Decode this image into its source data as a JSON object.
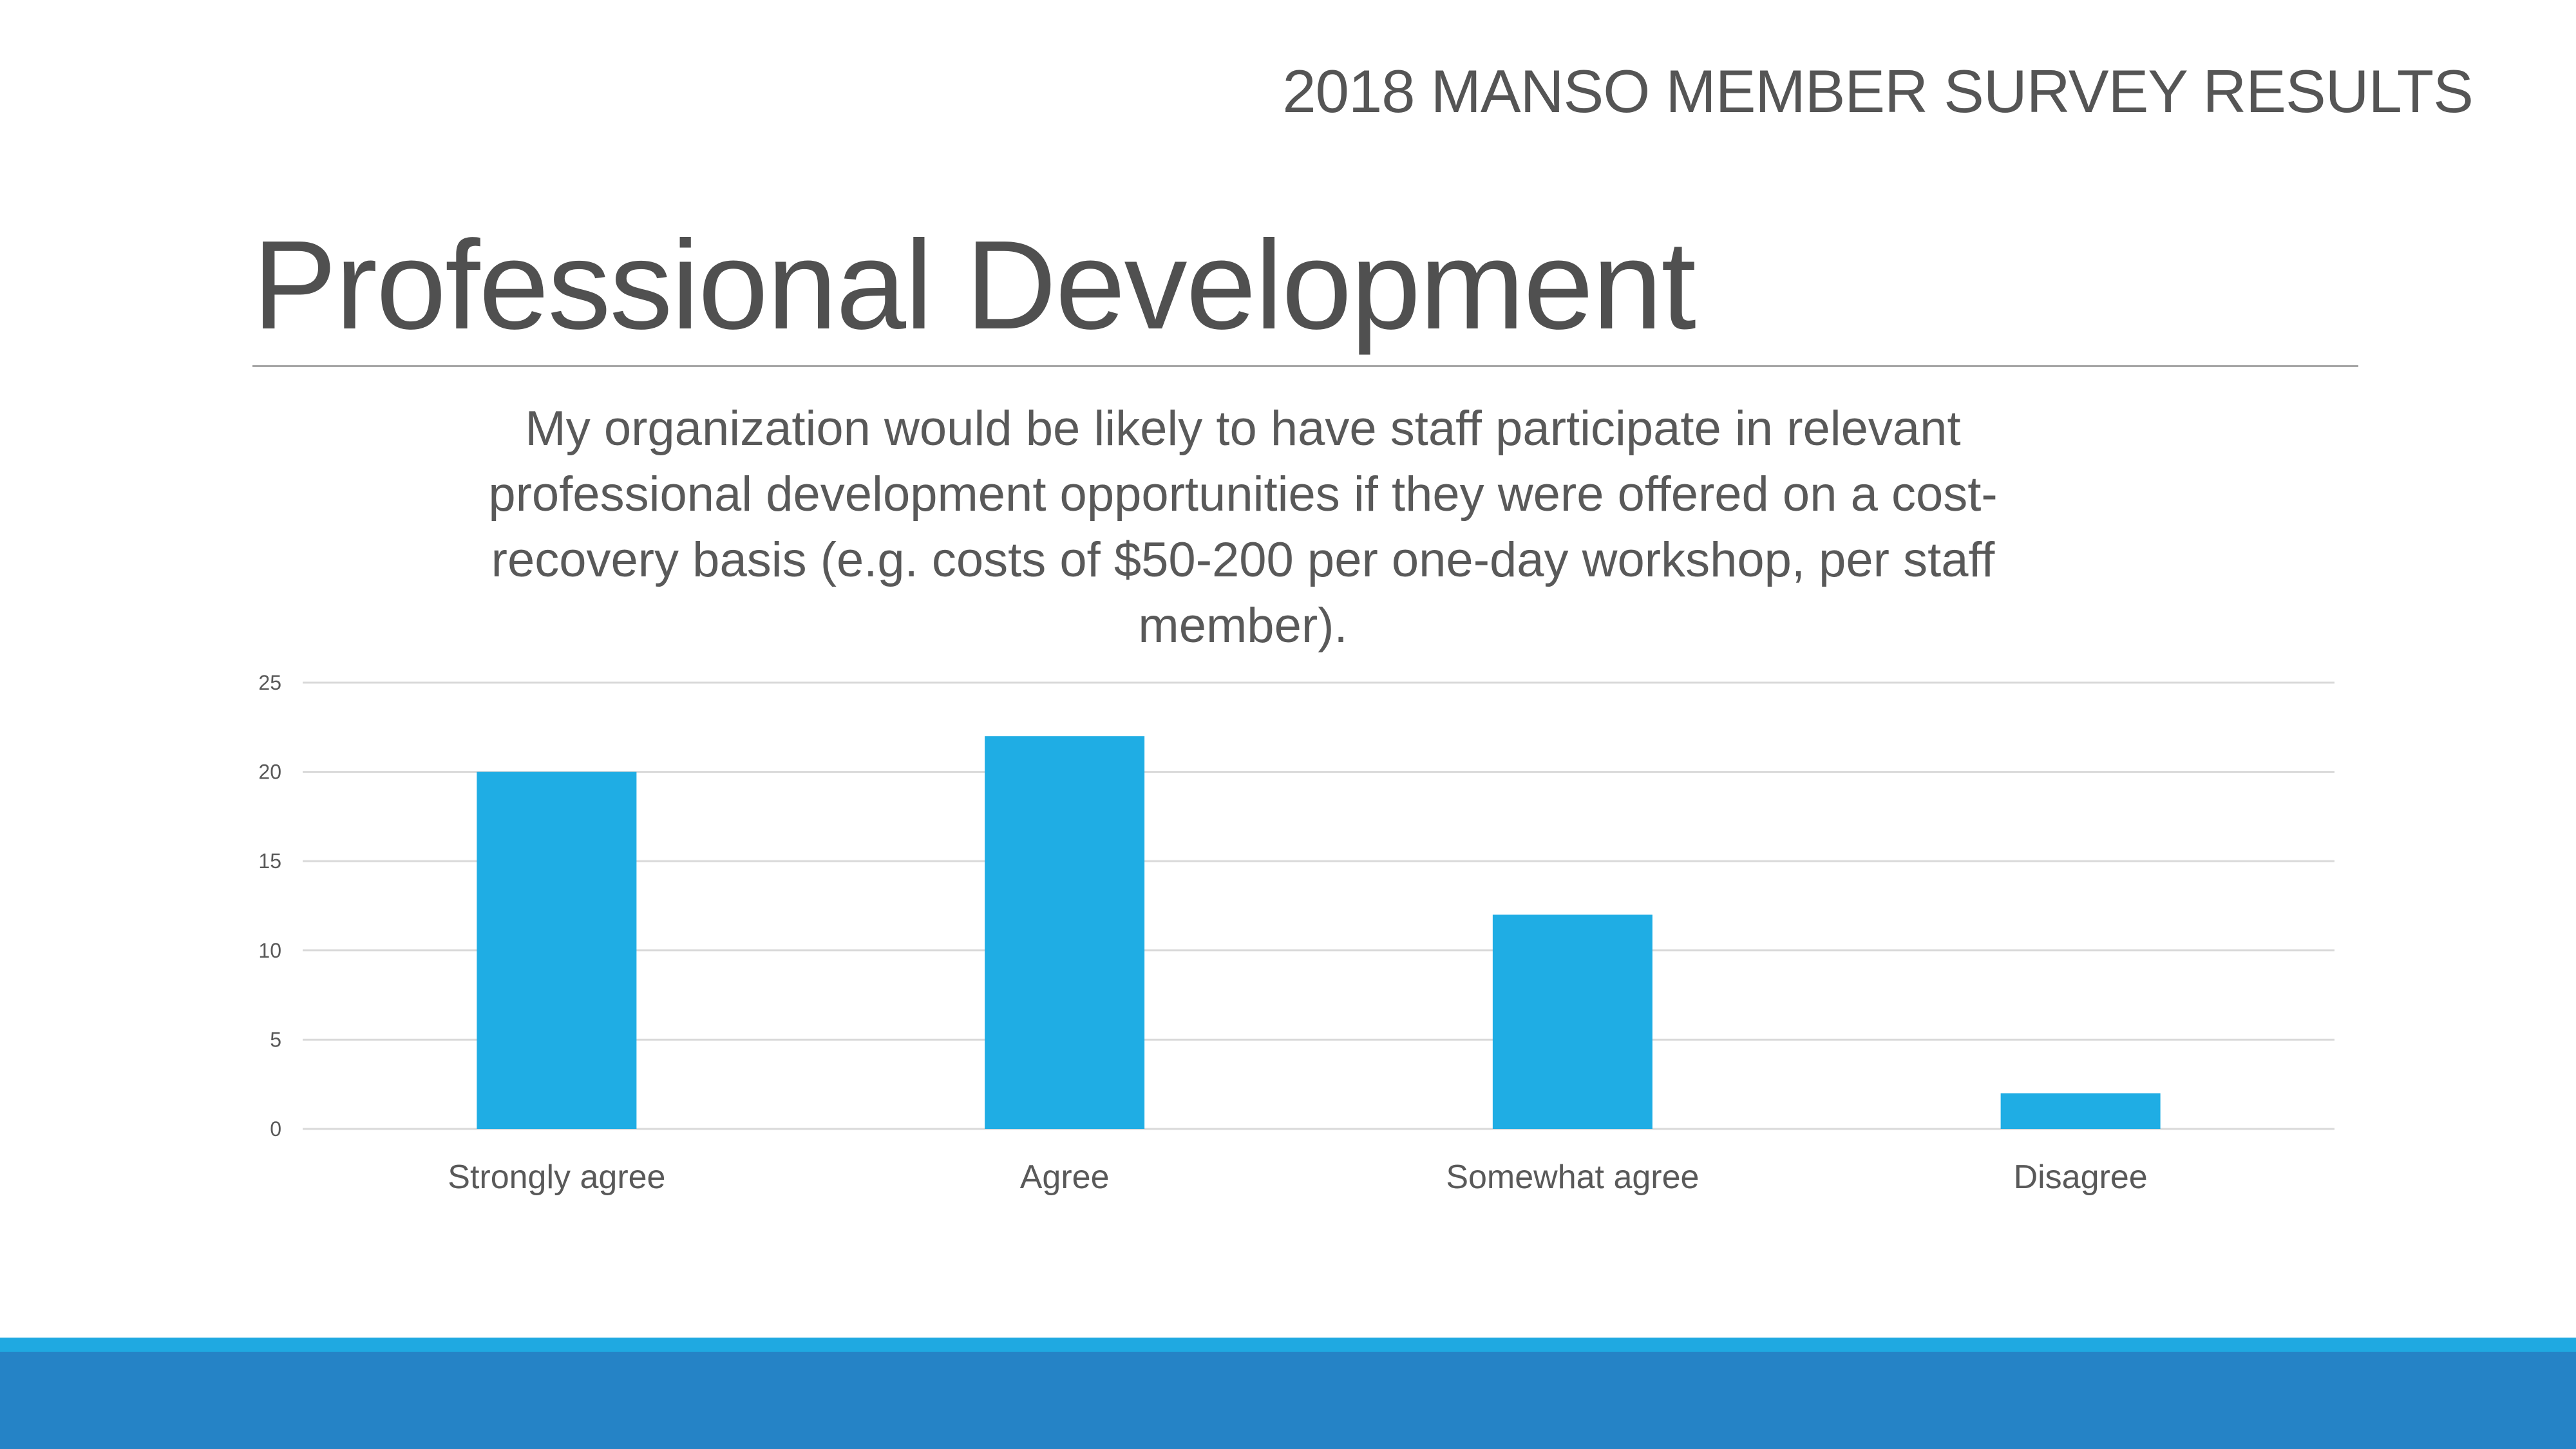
{
  "header": {
    "label": "2018 MANSO MEMBER SURVEY RESULTS"
  },
  "slide": {
    "title": "Professional Development"
  },
  "colors": {
    "bar": "#1FADE4",
    "gridline": "#d9d9d9",
    "footer_light": "#1fa9e1",
    "footer_dark": "#2583c6",
    "text": "#595959"
  },
  "chart_data": {
    "type": "bar",
    "title": "My organization would be likely to have staff participate in relevant professional development opportunities if they were offered on a cost-recovery basis (e.g. costs of $50-200 per one-day workshop, per staff member).",
    "title_lines": [
      "My organization would be likely to have staff participate in relevant",
      "professional development opportunities if they were offered on a cost-",
      "recovery basis (e.g. costs of $50-200 per one-day workshop, per staff",
      "member)."
    ],
    "categories": [
      "Strongly agree",
      "Agree",
      "Somewhat agree",
      "Disagree"
    ],
    "values": [
      20,
      22,
      12,
      2
    ],
    "xlabel": "",
    "ylabel": "",
    "ylim": [
      0,
      25
    ],
    "yticks": [
      "0",
      "5",
      "10",
      "15",
      "20",
      "25"
    ],
    "grid": true,
    "legend": "none"
  }
}
